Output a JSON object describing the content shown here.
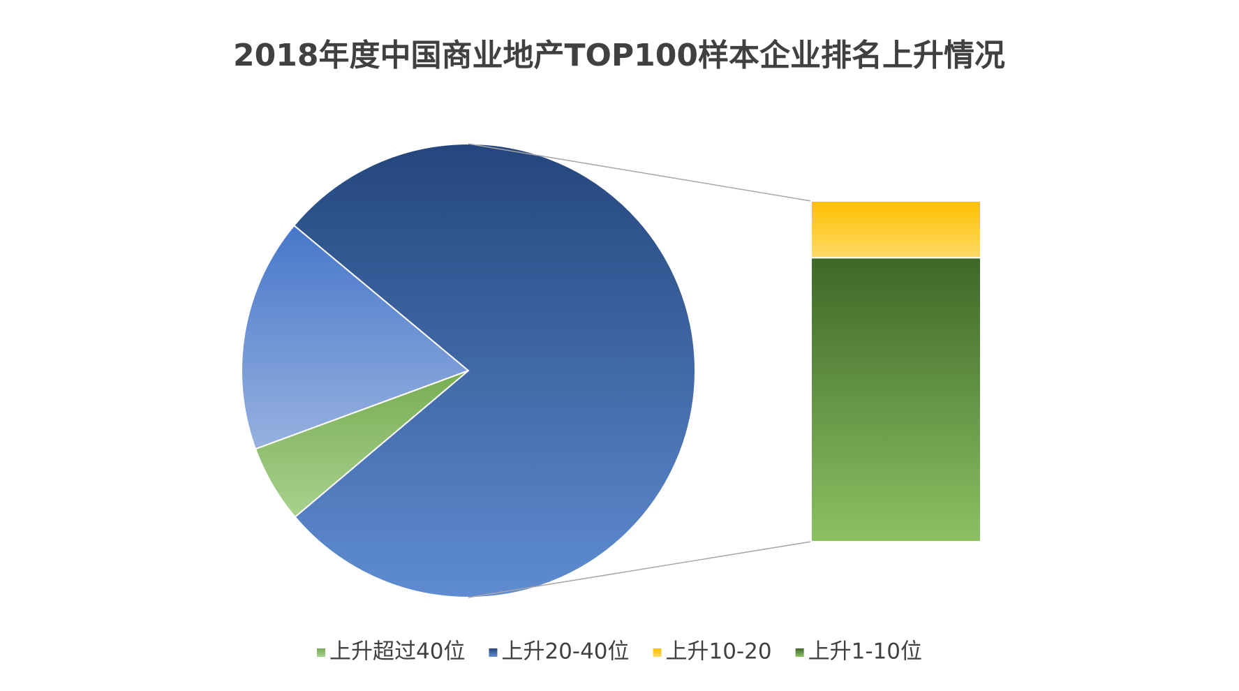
{
  "chart_data": {
    "type": "pie-of-bar",
    "title": "2018年度中国商业地产TOP100样本企业排名上升情况",
    "start_angle": 229.8,
    "pie_series": [
      {
        "name": "上升超过40位",
        "colors": [
          "#77ad52",
          "#a9d18e"
        ],
        "value": 4
      },
      {
        "name": "上升20-40位",
        "colors": [
          "#24467c",
          "#5f8cd2"
        ],
        "value": 56
      }
    ],
    "other_colors": [
      "#4677c9",
      "#97b1e0"
    ],
    "bar_series": [
      {
        "name": "上升10-20",
        "colors": [
          "#ffc000",
          "#ffd966"
        ],
        "value": 2
      },
      {
        "name": "上升1-10位",
        "colors": [
          "#3e6827",
          "#8bc163"
        ],
        "value": 10
      }
    ],
    "legend": "bottom"
  }
}
